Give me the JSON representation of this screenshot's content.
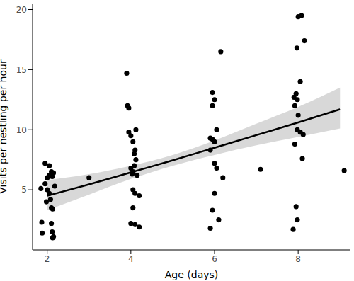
{
  "chart_data": {
    "type": "scatter",
    "x_label": "Age (days)",
    "y_label": "Visits per nestling per hour",
    "color": "#000000",
    "marker": "circle",
    "grid": false,
    "x": [
      1.85,
      1.87,
      1.88,
      1.95,
      2.05,
      2.1,
      2.15,
      2.12,
      2.0,
      2.05,
      2.08,
      1.98,
      2.1,
      2.13,
      2.1,
      2.12,
      2.15,
      2.13,
      2.0,
      2.18,
      2.05,
      1.95,
      3.0,
      3.9,
      3.92,
      3.95,
      3.95,
      4.0,
      4.05,
      4.1,
      4.12,
      4.08,
      4.0,
      4.05,
      4.03,
      4.15,
      4.05,
      4.1,
      4.2,
      4.05,
      4.0,
      4.1,
      4.2,
      4.08,
      4.12,
      6.15,
      5.95,
      6.0,
      5.95,
      6.05,
      5.9,
      5.95,
      6.0,
      5.9,
      6.0,
      6.05,
      6.0,
      5.95,
      6.1,
      5.9,
      6.2,
      7.1,
      8.0,
      8.08,
      8.15,
      7.97,
      8.05,
      7.95,
      7.9,
      7.98,
      7.92,
      8.0,
      7.98,
      8.05,
      8.12,
      7.92,
      8.1,
      7.95,
      7.98,
      7.88,
      9.1
    ],
    "values": [
      5.1,
      2.3,
      1.4,
      7.2,
      7.0,
      6.5,
      6.4,
      6.1,
      5.0,
      4.7,
      4.2,
      4.0,
      3.5,
      3.4,
      2.2,
      1.5,
      1.1,
      1.0,
      6.0,
      5.3,
      6.2,
      5.5,
      6.0,
      14.7,
      12.0,
      11.8,
      9.8,
      9.5,
      9.0,
      8.3,
      7.5,
      7.0,
      6.8,
      6.5,
      6.3,
      6.2,
      5.0,
      4.7,
      4.5,
      3.5,
      2.2,
      2.1,
      1.9,
      8.0,
      10.0,
      16.5,
      13.1,
      12.5,
      12.0,
      10.0,
      9.3,
      9.2,
      9.0,
      8.3,
      7.2,
      6.8,
      4.7,
      3.3,
      2.5,
      1.8,
      6.0,
      6.7,
      19.4,
      19.5,
      17.4,
      16.8,
      14.0,
      13.0,
      12.7,
      12.5,
      12.0,
      11.2,
      10.0,
      9.8,
      9.6,
      8.8,
      7.6,
      3.6,
      2.5,
      1.7,
      6.6
    ],
    "fit": {
      "x": [
        2,
        3,
        4,
        5,
        6,
        7,
        8,
        9
      ],
      "values": [
        4.5,
        5.45,
        6.45,
        7.45,
        8.5,
        9.55,
        10.6,
        11.7
      ],
      "lower": [
        3.3,
        4.6,
        5.9,
        7.0,
        7.9,
        8.7,
        9.4,
        10.1
      ],
      "upper": [
        5.8,
        6.3,
        7.0,
        7.9,
        9.1,
        10.5,
        11.9,
        13.5
      ],
      "color": "#000000",
      "band_color": "#bebebe"
    },
    "xlim": [
      1.65,
      9.25
    ],
    "ylim": [
      0,
      20.5
    ],
    "xticks": [
      2,
      4,
      6,
      8
    ],
    "yticks": [
      5,
      10,
      15,
      20
    ]
  }
}
